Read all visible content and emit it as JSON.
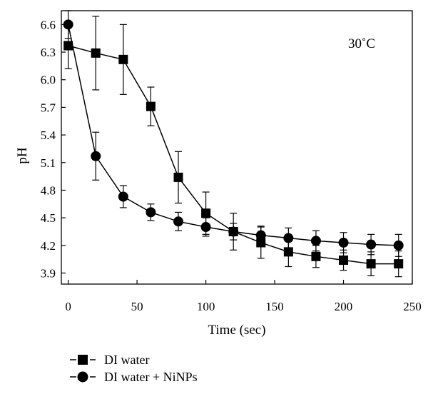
{
  "chart_data": {
    "type": "line",
    "title": "",
    "annotation": "30˚C",
    "xlabel": "Time (sec)",
    "ylabel": "pH",
    "xlim": [
      -5,
      250
    ],
    "ylim": [
      3.78,
      6.75
    ],
    "xticks": [
      0,
      50,
      100,
      150,
      200,
      250
    ],
    "xtick_labels": [
      "0",
      "50",
      "100",
      "150",
      "200",
      "250"
    ],
    "yticks": [
      3.9,
      4.2,
      4.5,
      4.8,
      5.1,
      5.4,
      5.7,
      6.0,
      6.3,
      6.6
    ],
    "ytick_labels": [
      "3.9",
      "4.2",
      "4.5",
      "4.8",
      "5.1",
      "5.4",
      "5.7",
      "6.0",
      "6.3",
      "6.6"
    ],
    "grid": false,
    "legend_position": "below-left",
    "series": [
      {
        "name": "DI water",
        "marker": "square",
        "x": [
          0,
          20,
          40,
          60,
          80,
          100,
          120,
          140,
          160,
          180,
          200,
          220,
          240
        ],
        "y": [
          6.37,
          6.29,
          6.22,
          5.71,
          4.94,
          4.55,
          4.35,
          4.23,
          4.13,
          4.08,
          4.04,
          4.0,
          4.0
        ],
        "error": [
          0.25,
          0.4,
          0.38,
          0.21,
          0.28,
          0.23,
          0.2,
          0.17,
          0.16,
          0.12,
          0.11,
          0.13,
          0.14
        ]
      },
      {
        "name": "DI water + NiNPs",
        "marker": "circle",
        "x": [
          0,
          20,
          40,
          60,
          80,
          100,
          120,
          140,
          160,
          180,
          200,
          220,
          240
        ],
        "y": [
          6.6,
          5.17,
          4.73,
          4.56,
          4.46,
          4.4,
          4.35,
          4.31,
          4.28,
          4.25,
          4.23,
          4.21,
          4.2
        ],
        "error": [
          0.15,
          0.26,
          0.12,
          0.09,
          0.1,
          0.1,
          0.09,
          0.1,
          0.11,
          0.11,
          0.11,
          0.11,
          0.12
        ]
      }
    ]
  }
}
